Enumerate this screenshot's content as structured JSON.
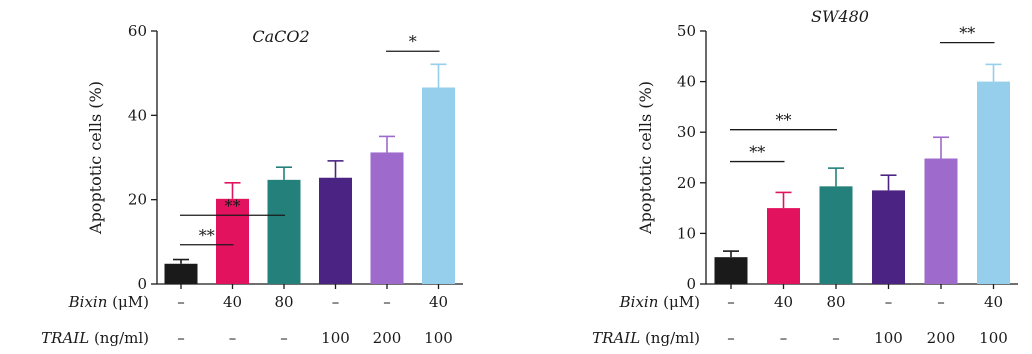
{
  "chart_data": [
    {
      "type": "bar",
      "title": "CaCO2",
      "ylabel": "Apoptotic cells (%)",
      "ylim": [
        0,
        60
      ],
      "yticks": [
        "0",
        "20",
        "40",
        "60"
      ],
      "values": [
        4.8,
        20.2,
        24.7,
        25.2,
        31.2,
        46.6
      ],
      "errors": [
        1.0,
        3.8,
        3.0,
        4.0,
        3.8,
        5.5
      ],
      "colors": [
        "#1a1a1a",
        "#e3125e",
        "#23807a",
        "#4b2383",
        "#9e6acb",
        "#95cfec"
      ],
      "row_labels": [
        {
          "label_italic": "Bixin",
          "label_rest": " (μM)",
          "values": [
            "–",
            "40",
            "80",
            "–",
            "–",
            "40"
          ]
        },
        {
          "label_italic": "TRAIL",
          "label_rest": " (ng/ml)",
          "values": [
            "–",
            "–",
            "–",
            "100",
            "200",
            "100"
          ]
        }
      ],
      "significance": [
        {
          "from": 0,
          "to": 1,
          "label": "**",
          "level": 9.3
        },
        {
          "from": 0,
          "to": 2,
          "label": "**",
          "level": 16.3
        },
        {
          "from": 4,
          "to": 5,
          "label": "*",
          "level": 55.2
        }
      ]
    },
    {
      "type": "bar",
      "title": "SW480",
      "ylabel": "Apoptotic cells (%)",
      "ylim": [
        0,
        50
      ],
      "yticks": [
        "0",
        "10",
        "20",
        "30",
        "40",
        "50"
      ],
      "values": [
        5.3,
        15.0,
        19.3,
        18.5,
        24.8,
        40.0
      ],
      "errors": [
        1.2,
        3.1,
        3.6,
        3.0,
        4.2,
        3.4
      ],
      "colors": [
        "#1a1a1a",
        "#e3125e",
        "#23807a",
        "#4b2383",
        "#9e6acb",
        "#95cfec"
      ],
      "row_labels": [
        {
          "label_italic": "Bixin",
          "label_rest": " (μM)",
          "values": [
            "–",
            "40",
            "80",
            "–",
            "–",
            "40"
          ]
        },
        {
          "label_italic": "TRAIL",
          "label_rest": " (ng/ml)",
          "values": [
            "–",
            "–",
            "–",
            "100",
            "200",
            "100"
          ]
        }
      ],
      "significance": [
        {
          "from": 0,
          "to": 1,
          "label": "**",
          "level": 24.2
        },
        {
          "from": 0,
          "to": 2,
          "label": "**",
          "level": 30.5
        },
        {
          "from": 4,
          "to": 5,
          "label": "**",
          "level": 47.7
        }
      ]
    }
  ]
}
